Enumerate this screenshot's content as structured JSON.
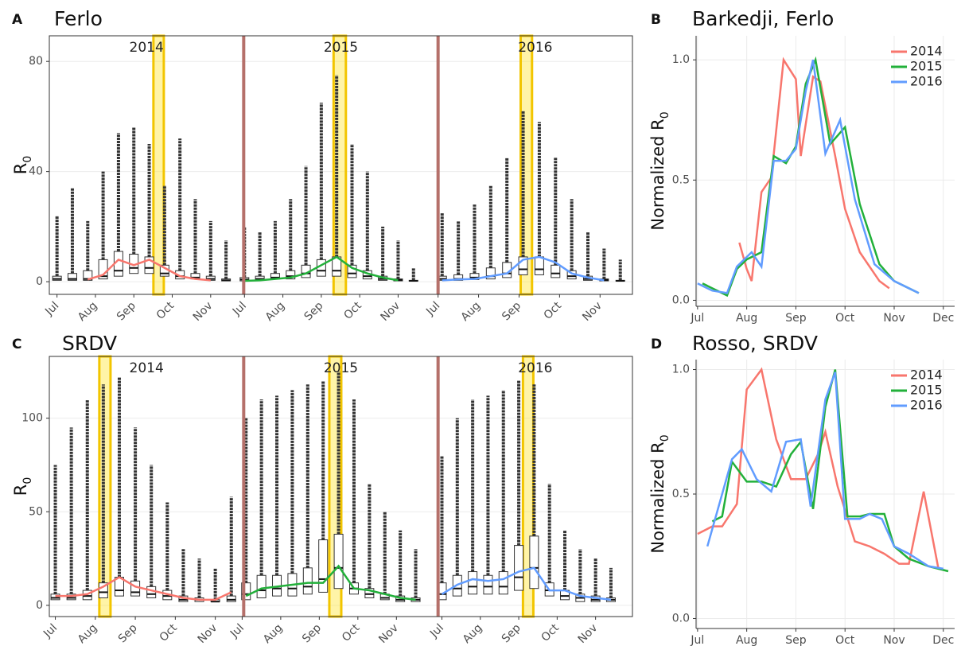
{
  "chart_data": [
    {
      "type": "boxplot",
      "panel": "A",
      "title": "Ferlo",
      "ylabel": "R",
      "ylabel_sub": "0",
      "ylim": [
        -4.6,
        89.3
      ],
      "yticks": [
        0,
        40,
        80
      ],
      "grid": true,
      "facets": [
        {
          "label": "2014",
          "color": "#f8766d",
          "xlim": [
            6.8,
            11.86
          ],
          "highlight": [
            9.51,
            9.78
          ],
          "xticks": [
            {
              "value": 7,
              "label": "Jul"
            },
            {
              "value": 8,
              "label": "Aug"
            },
            {
              "value": 9,
              "label": "Sep"
            },
            {
              "value": 10,
              "label": "Oct"
            },
            {
              "value": 11,
              "label": "Nov"
            }
          ],
          "x": [
            7.0,
            7.4,
            7.8,
            8.2,
            8.6,
            9.0,
            9.4,
            9.8,
            10.2,
            10.6,
            11.0,
            11.4
          ],
          "q1": [
            0.5,
            0.5,
            0.5,
            1,
            2,
            3,
            3,
            2,
            1,
            1,
            0.5,
            0.3
          ],
          "median": [
            1,
            1,
            1,
            2,
            4,
            5,
            5,
            3,
            2,
            1.5,
            1,
            0.5
          ],
          "q3": [
            2,
            3,
            4,
            8,
            11,
            10,
            9,
            6,
            4,
            3,
            2,
            1
          ],
          "max": [
            24,
            34,
            22,
            40,
            54,
            56,
            50,
            35,
            52,
            30,
            22,
            15
          ],
          "line": [
            null,
            null,
            0.8,
            2.5,
            8,
            6,
            8,
            5,
            2,
            1,
            0.5,
            null
          ]
        },
        {
          "label": "2015",
          "color": "#22b03a",
          "xlim": [
            6.98,
            12.04
          ],
          "highlight": [
            9.32,
            9.64
          ],
          "xticks": [
            {
              "value": 7,
              "label": "Jul"
            },
            {
              "value": 8,
              "label": "Aug"
            },
            {
              "value": 9,
              "label": "Sep"
            },
            {
              "value": 10,
              "label": "Oct"
            },
            {
              "value": 11,
              "label": "Nov"
            }
          ],
          "x": [
            7.0,
            7.4,
            7.8,
            8.2,
            8.6,
            9.0,
            9.4,
            9.8,
            10.2,
            10.6,
            11.0,
            11.4
          ],
          "q1": [
            0.3,
            0.5,
            1,
            1,
            1.5,
            2,
            2,
            1.5,
            1,
            0.5,
            0.3,
            0.2
          ],
          "median": [
            0.8,
            1,
            1.5,
            2,
            3,
            4,
            4,
            3,
            2,
            1,
            0.6,
            0.3
          ],
          "q3": [
            1.5,
            2,
            3,
            4,
            6,
            8,
            9,
            6,
            4,
            2,
            1,
            0.5
          ],
          "max": [
            20,
            18,
            22,
            30,
            42,
            65,
            75,
            50,
            40,
            20,
            15,
            5
          ],
          "line": [
            0.3,
            0.5,
            1,
            1.5,
            3,
            6,
            9,
            5,
            3,
            1.5,
            0.5,
            null
          ]
        },
        {
          "label": "2016",
          "color": "#619cff",
          "xlim": [
            7.0,
            11.8
          ],
          "highlight": [
            9.04,
            9.32
          ],
          "xticks": [
            {
              "value": 7,
              "label": "Jul"
            },
            {
              "value": 8,
              "label": "Aug"
            },
            {
              "value": 9,
              "label": "Sep"
            },
            {
              "value": 10,
              "label": "Oct"
            },
            {
              "value": 11,
              "label": "Nov"
            }
          ],
          "x": [
            7.1,
            7.5,
            7.9,
            8.3,
            8.7,
            9.1,
            9.5,
            9.9,
            10.3,
            10.7,
            11.1,
            11.5
          ],
          "q1": [
            0.5,
            0.5,
            0.8,
            1,
            1.5,
            2.5,
            2.5,
            1.5,
            1,
            0.5,
            0.3,
            0.2
          ],
          "median": [
            1,
            1,
            1.5,
            2,
            3,
            4.5,
            4.5,
            3,
            2,
            1,
            0.6,
            0.3
          ],
          "q3": [
            2,
            2.5,
            3,
            5,
            7,
            9,
            9,
            6,
            4,
            2,
            1,
            0.5
          ],
          "max": [
            25,
            22,
            28,
            35,
            45,
            62,
            58,
            45,
            30,
            18,
            12,
            8
          ],
          "line": [
            0.5,
            0.8,
            1,
            2,
            3,
            8,
            9,
            7,
            3,
            1.5,
            0.5,
            null
          ]
        }
      ]
    },
    {
      "type": "line",
      "panel": "B",
      "title": "Barkedji, Ferlo",
      "ylabel": "Normalized R",
      "ylabel_sub": "0",
      "xlim": [
        6.97,
        12.23
      ],
      "ylim": [
        -0.025,
        1.1
      ],
      "grid": true,
      "legend": "top-right",
      "xticks": [
        {
          "value": 7,
          "label": "Jul"
        },
        {
          "value": 8,
          "label": "Aug"
        },
        {
          "value": 9,
          "label": "Sep"
        },
        {
          "value": 10,
          "label": "Oct"
        },
        {
          "value": 11,
          "label": "Nov"
        },
        {
          "value": 12,
          "label": "Dec"
        }
      ],
      "yticks": [
        {
          "value": 0,
          "label": "0.0"
        },
        {
          "value": 0.5,
          "label": "0.5"
        },
        {
          "value": 1,
          "label": "1.0"
        }
      ],
      "series": [
        {
          "name": "2014",
          "color": "#f8766d",
          "x": [
            7.85,
            8.0,
            8.1,
            8.3,
            8.5,
            8.75,
            9.0,
            9.1,
            9.35,
            9.5,
            9.8,
            10.0,
            10.3,
            10.7,
            10.9
          ],
          "values": [
            0.24,
            0.13,
            0.08,
            0.45,
            0.51,
            1.0,
            0.92,
            0.6,
            0.93,
            0.91,
            0.6,
            0.38,
            0.2,
            0.08,
            0.05
          ]
        },
        {
          "name": "2015",
          "color": "#22b03a",
          "x": [
            7.1,
            7.3,
            7.6,
            7.8,
            8.0,
            8.3,
            8.55,
            8.8,
            9.0,
            9.2,
            9.4,
            9.7,
            10.0,
            10.3,
            10.7,
            11.0,
            11.5
          ],
          "values": [
            0.07,
            0.05,
            0.02,
            0.13,
            0.17,
            0.2,
            0.6,
            0.57,
            0.64,
            0.9,
            1.0,
            0.65,
            0.72,
            0.4,
            0.15,
            0.08,
            0.03
          ]
        },
        {
          "name": "2016",
          "color": "#619cff",
          "x": [
            7.0,
            7.3,
            7.6,
            7.8,
            8.1,
            8.3,
            8.55,
            8.8,
            9.0,
            9.2,
            9.35,
            9.6,
            9.9,
            10.2,
            10.6,
            11.0,
            11.5
          ],
          "values": [
            0.07,
            0.04,
            0.03,
            0.14,
            0.2,
            0.14,
            0.58,
            0.58,
            0.63,
            0.87,
            1.0,
            0.61,
            0.75,
            0.42,
            0.15,
            0.08,
            0.03
          ]
        }
      ]
    },
    {
      "type": "boxplot",
      "panel": "C",
      "title": "SRDV",
      "ylabel": "R",
      "ylabel_sub": "0",
      "ylim": [
        -6,
        133
      ],
      "yticks": [
        0,
        50,
        100
      ],
      "grid": true,
      "facets": [
        {
          "label": "2014",
          "color": "#f8766d",
          "xlim": [
            6.85,
            11.71
          ],
          "highlight": [
            8.1,
            8.38
          ],
          "xticks": [
            {
              "value": 7,
              "label": "Jul"
            },
            {
              "value": 8,
              "label": "Aug"
            },
            {
              "value": 9,
              "label": "Sep"
            },
            {
              "value": 10,
              "label": "Oct"
            },
            {
              "value": 11,
              "label": "Nov"
            }
          ],
          "x": [
            7.0,
            7.4,
            7.8,
            8.2,
            8.6,
            9.0,
            9.4,
            9.8,
            10.2,
            10.6,
            11.0,
            11.4
          ],
          "q1": [
            3,
            3,
            3,
            4,
            5,
            5,
            4,
            3,
            2,
            2,
            2,
            2
          ],
          "median": [
            4,
            4,
            5,
            7,
            8,
            7,
            6,
            5,
            3,
            3,
            2,
            3
          ],
          "q3": [
            6,
            6,
            8,
            12,
            15,
            13,
            10,
            8,
            5,
            4,
            3,
            5
          ],
          "max": [
            75,
            95,
            110,
            118,
            122,
            95,
            75,
            55,
            30,
            25,
            20,
            58
          ],
          "line": [
            5,
            5,
            6,
            10,
            15,
            10,
            8,
            6,
            4,
            3,
            3,
            7
          ]
        },
        {
          "label": "2015",
          "color": "#22b03a",
          "xlim": [
            7.04,
            12.08
          ],
          "highlight": [
            9.26,
            9.57
          ],
          "xticks": [
            {
              "value": 7,
              "label": "Jul"
            },
            {
              "value": 8,
              "label": "Aug"
            },
            {
              "value": 9,
              "label": "Sep"
            },
            {
              "value": 10,
              "label": "Oct"
            },
            {
              "value": 11,
              "label": "Nov"
            }
          ],
          "x": [
            7.1,
            7.5,
            7.9,
            8.3,
            8.7,
            9.1,
            9.5,
            9.9,
            10.3,
            10.7,
            11.1,
            11.5
          ],
          "q1": [
            3,
            4,
            5,
            5,
            6,
            7,
            9,
            6,
            4,
            3,
            2,
            2
          ],
          "median": [
            6,
            8,
            9,
            9,
            10,
            14,
            20,
            9,
            6,
            4,
            3,
            3
          ],
          "q3": [
            12,
            16,
            16,
            17,
            20,
            35,
            38,
            12,
            9,
            6,
            5,
            4
          ],
          "max": [
            100,
            110,
            112,
            115,
            118,
            120,
            125,
            110,
            65,
            50,
            40,
            30
          ],
          "line": [
            5,
            9,
            10,
            11,
            12,
            12,
            21,
            9,
            8,
            6,
            4,
            3
          ]
        },
        {
          "label": "2016",
          "color": "#619cff",
          "xlim": [
            6.9,
            11.96
          ],
          "highlight": [
            9.11,
            9.38
          ],
          "xticks": [
            {
              "value": 7,
              "label": "Jul"
            },
            {
              "value": 8,
              "label": "Aug"
            },
            {
              "value": 9,
              "label": "Sep"
            },
            {
              "value": 10,
              "label": "Oct"
            },
            {
              "value": 11,
              "label": "Nov"
            }
          ],
          "x": [
            7.0,
            7.4,
            7.8,
            8.2,
            8.6,
            9.0,
            9.4,
            9.8,
            10.2,
            10.6,
            11.0,
            11.4
          ],
          "q1": [
            3,
            5,
            6,
            6,
            6,
            8,
            9,
            5,
            3,
            2,
            2,
            2
          ],
          "median": [
            6,
            9,
            10,
            10,
            10,
            15,
            20,
            8,
            5,
            4,
            3,
            3
          ],
          "q3": [
            12,
            16,
            18,
            16,
            18,
            32,
            37,
            12,
            8,
            6,
            5,
            4
          ],
          "max": [
            80,
            100,
            110,
            112,
            115,
            120,
            118,
            65,
            40,
            30,
            25,
            20
          ],
          "line": [
            6,
            11,
            14,
            13,
            14,
            18,
            20,
            8,
            8,
            5,
            4,
            3
          ]
        }
      ]
    },
    {
      "type": "line",
      "panel": "D",
      "title": "Rosso, SRDV",
      "ylabel": "Normalized R",
      "ylabel_sub": "0",
      "xlim": [
        6.97,
        12.23
      ],
      "ylim": [
        -0.04,
        1.04
      ],
      "grid": true,
      "legend": "top-right",
      "xticks": [
        {
          "value": 7,
          "label": "Jul"
        },
        {
          "value": 8,
          "label": "Aug"
        },
        {
          "value": 9,
          "label": "Sep"
        },
        {
          "value": 10,
          "label": "Oct"
        },
        {
          "value": 11,
          "label": "Nov"
        },
        {
          "value": 12,
          "label": "Dec"
        }
      ],
      "yticks": [
        {
          "value": 0,
          "label": "0.0"
        },
        {
          "value": 0.5,
          "label": "0.5"
        },
        {
          "value": 1,
          "label": "1.0"
        }
      ],
      "series": [
        {
          "name": "2014",
          "color": "#f8766d",
          "x": [
            7.0,
            7.3,
            7.5,
            7.8,
            8.0,
            8.3,
            8.6,
            8.9,
            9.2,
            9.45,
            9.6,
            9.85,
            10.2,
            10.5,
            10.8,
            11.1,
            11.3,
            11.6,
            11.9
          ],
          "values": [
            0.34,
            0.37,
            0.37,
            0.46,
            0.92,
            1.0,
            0.72,
            0.56,
            0.56,
            0.66,
            0.75,
            0.53,
            0.31,
            0.29,
            0.26,
            0.22,
            0.22,
            0.51,
            0.2
          ]
        },
        {
          "name": "2015",
          "color": "#22b03a",
          "x": [
            7.3,
            7.5,
            7.7,
            8.0,
            8.3,
            8.6,
            8.9,
            9.1,
            9.35,
            9.6,
            9.8,
            10.05,
            10.3,
            10.5,
            10.8,
            11.0,
            11.3,
            11.7,
            12.1
          ],
          "values": [
            0.39,
            0.41,
            0.63,
            0.55,
            0.55,
            0.53,
            0.66,
            0.71,
            0.44,
            0.85,
            1.0,
            0.41,
            0.41,
            0.42,
            0.42,
            0.29,
            0.24,
            0.21,
            0.19
          ]
        },
        {
          "name": "2016",
          "color": "#619cff",
          "x": [
            7.2,
            7.4,
            7.7,
            7.9,
            8.2,
            8.5,
            8.8,
            9.1,
            9.3,
            9.6,
            9.8,
            10.0,
            10.3,
            10.5,
            10.75,
            11.0,
            11.3,
            11.7,
            12.0
          ],
          "values": [
            0.29,
            0.43,
            0.64,
            0.68,
            0.56,
            0.51,
            0.71,
            0.72,
            0.45,
            0.88,
            0.99,
            0.4,
            0.4,
            0.42,
            0.4,
            0.29,
            0.26,
            0.21,
            0.2
          ]
        }
      ]
    }
  ]
}
